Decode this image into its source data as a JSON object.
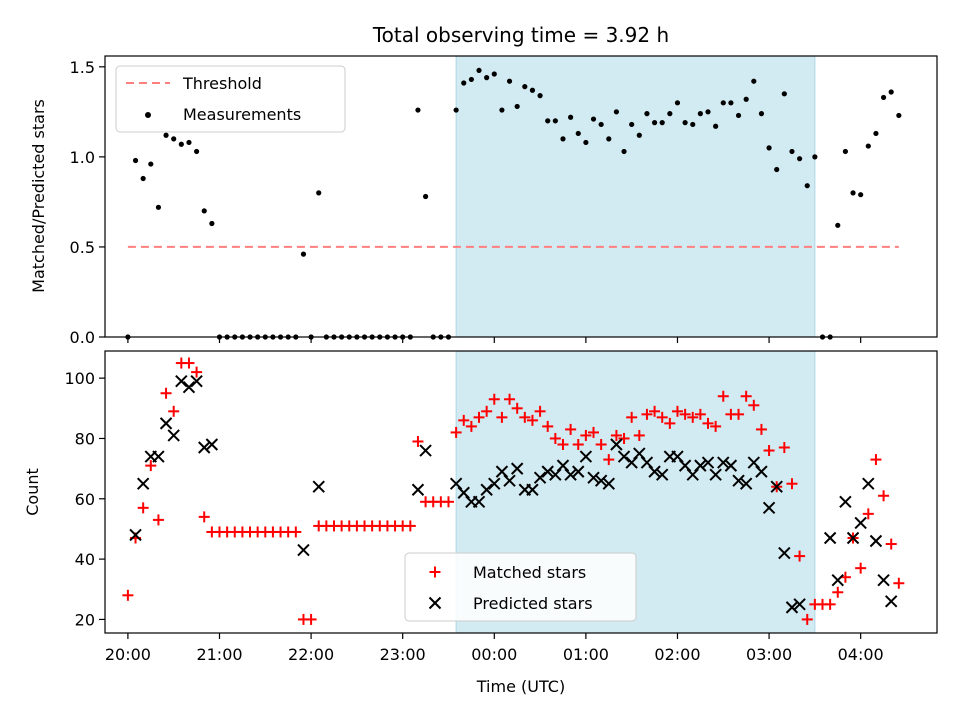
{
  "title": "Total observing time = 3.92 h",
  "colors": {
    "threshold": "#ff7f7f",
    "measurement": "#000000",
    "matched": "#ff0000",
    "predicted": "#000000",
    "window": "#add8e6"
  },
  "chart_data": [
    {
      "type": "scatter",
      "ylabel": "Matched/Predicted stars",
      "ylim": [
        0,
        1.56
      ],
      "yticks": [
        0.0,
        0.5,
        1.0,
        1.5
      ],
      "ytick_labels": [
        "0.0",
        "0.5",
        "1.0",
        "1.5"
      ],
      "legend": {
        "placement": "upper-left",
        "entries": [
          "Threshold",
          "Measurements"
        ]
      },
      "observing_window": [
        "23:35",
        "03:30"
      ],
      "threshold": {
        "value": 0.5,
        "from": "20:00",
        "to": "04:25"
      },
      "measurements": [
        [
          "20:00",
          0.0
        ],
        [
          "20:05",
          0.98
        ],
        [
          "20:10",
          0.88
        ],
        [
          "20:15",
          0.96
        ],
        [
          "20:20",
          0.72
        ],
        [
          "20:25",
          1.12
        ],
        [
          "20:30",
          1.1
        ],
        [
          "20:35",
          1.07
        ],
        [
          "20:40",
          1.08
        ],
        [
          "20:45",
          1.03
        ],
        [
          "20:50",
          0.7
        ],
        [
          "20:55",
          0.63
        ],
        [
          "21:00",
          0.0
        ],
        [
          "21:05",
          0.0
        ],
        [
          "21:10",
          0.0
        ],
        [
          "21:15",
          0.0
        ],
        [
          "21:20",
          0.0
        ],
        [
          "21:25",
          0.0
        ],
        [
          "21:30",
          0.0
        ],
        [
          "21:35",
          0.0
        ],
        [
          "21:40",
          0.0
        ],
        [
          "21:45",
          0.0
        ],
        [
          "21:50",
          0.0
        ],
        [
          "21:55",
          0.46
        ],
        [
          "22:00",
          0.0
        ],
        [
          "22:05",
          0.8
        ],
        [
          "22:10",
          0.0
        ],
        [
          "22:15",
          0.0
        ],
        [
          "22:20",
          0.0
        ],
        [
          "22:25",
          0.0
        ],
        [
          "22:30",
          0.0
        ],
        [
          "22:35",
          0.0
        ],
        [
          "22:40",
          0.0
        ],
        [
          "22:45",
          0.0
        ],
        [
          "22:50",
          0.0
        ],
        [
          "22:55",
          0.0
        ],
        [
          "23:00",
          0.0
        ],
        [
          "23:05",
          0.0
        ],
        [
          "23:10",
          1.26
        ],
        [
          "23:15",
          0.78
        ],
        [
          "23:20",
          0.0
        ],
        [
          "23:25",
          0.0
        ],
        [
          "23:30",
          0.0
        ],
        [
          "23:35",
          1.26
        ],
        [
          "23:40",
          1.41
        ],
        [
          "23:45",
          1.43
        ],
        [
          "23:50",
          1.48
        ],
        [
          "23:55",
          1.44
        ],
        [
          "00:00",
          1.46
        ],
        [
          "00:05",
          1.26
        ],
        [
          "00:10",
          1.42
        ],
        [
          "00:15",
          1.28
        ],
        [
          "00:20",
          1.39
        ],
        [
          "00:25",
          1.37
        ],
        [
          "00:30",
          1.34
        ],
        [
          "00:35",
          1.2
        ],
        [
          "00:40",
          1.2
        ],
        [
          "00:45",
          1.1
        ],
        [
          "00:50",
          1.22
        ],
        [
          "00:55",
          1.13
        ],
        [
          "01:00",
          1.08
        ],
        [
          "01:05",
          1.21
        ],
        [
          "01:10",
          1.18
        ],
        [
          "01:15",
          1.1
        ],
        [
          "01:20",
          1.25
        ],
        [
          "01:25",
          1.03
        ],
        [
          "01:30",
          1.18
        ],
        [
          "01:35",
          1.12
        ],
        [
          "01:40",
          1.24
        ],
        [
          "01:45",
          1.19
        ],
        [
          "01:50",
          1.19
        ],
        [
          "01:55",
          1.24
        ],
        [
          "02:00",
          1.3
        ],
        [
          "02:05",
          1.19
        ],
        [
          "02:10",
          1.18
        ],
        [
          "02:15",
          1.24
        ],
        [
          "02:20",
          1.25
        ],
        [
          "02:25",
          1.17
        ],
        [
          "02:30",
          1.3
        ],
        [
          "02:35",
          1.3
        ],
        [
          "02:40",
          1.23
        ],
        [
          "02:45",
          1.32
        ],
        [
          "02:50",
          1.42
        ],
        [
          "02:55",
          1.24
        ],
        [
          "03:00",
          1.05
        ],
        [
          "03:05",
          0.93
        ],
        [
          "03:10",
          1.35
        ],
        [
          "03:15",
          1.03
        ],
        [
          "03:20",
          0.99
        ],
        [
          "03:25",
          0.84
        ],
        [
          "03:30",
          1.0
        ],
        [
          "03:35",
          0.0
        ],
        [
          "03:40",
          0.0
        ],
        [
          "03:45",
          0.62
        ],
        [
          "03:50",
          1.03
        ],
        [
          "03:55",
          0.8
        ],
        [
          "04:00",
          0.79
        ],
        [
          "04:05",
          1.06
        ],
        [
          "04:10",
          1.13
        ],
        [
          "04:15",
          1.33
        ],
        [
          "04:20",
          1.36
        ],
        [
          "04:25",
          1.23
        ]
      ]
    },
    {
      "type": "scatter",
      "xlabel": "Time (UTC)",
      "ylabel": "Count",
      "ylim": [
        15.5,
        109
      ],
      "yticks": [
        20,
        40,
        60,
        80,
        100
      ],
      "ytick_labels": [
        "20",
        "40",
        "60",
        "80",
        "100"
      ],
      "xlim": [
        "19:45",
        "04:50"
      ],
      "xticks": [
        "20:00",
        "21:00",
        "22:00",
        "23:00",
        "00:00",
        "01:00",
        "02:00",
        "03:00",
        "04:00"
      ],
      "legend": {
        "placement": "lower-center",
        "entries": [
          "Matched stars",
          "Predicted stars"
        ]
      },
      "observing_window": [
        "23:35",
        "03:30"
      ],
      "series": [
        {
          "name": "Matched stars",
          "points": [
            [
              "20:00",
              28
            ],
            [
              "20:05",
              47
            ],
            [
              "20:10",
              57
            ],
            [
              "20:15",
              71
            ],
            [
              "20:20",
              53
            ],
            [
              "20:25",
              95
            ],
            [
              "20:30",
              89
            ],
            [
              "20:35",
              105
            ],
            [
              "20:40",
              105
            ],
            [
              "20:45",
              102
            ],
            [
              "20:50",
              54
            ],
            [
              "20:55",
              49
            ],
            [
              "21:00",
              49
            ],
            [
              "21:05",
              49
            ],
            [
              "21:10",
              49
            ],
            [
              "21:15",
              49
            ],
            [
              "21:20",
              49
            ],
            [
              "21:25",
              49
            ],
            [
              "21:30",
              49
            ],
            [
              "21:35",
              49
            ],
            [
              "21:40",
              49
            ],
            [
              "21:45",
              49
            ],
            [
              "21:50",
              49
            ],
            [
              "21:55",
              20
            ],
            [
              "22:00",
              20
            ],
            [
              "22:05",
              51
            ],
            [
              "22:10",
              51
            ],
            [
              "22:15",
              51
            ],
            [
              "22:20",
              51
            ],
            [
              "22:25",
              51
            ],
            [
              "22:30",
              51
            ],
            [
              "22:35",
              51
            ],
            [
              "22:40",
              51
            ],
            [
              "22:45",
              51
            ],
            [
              "22:50",
              51
            ],
            [
              "22:55",
              51
            ],
            [
              "23:00",
              51
            ],
            [
              "23:05",
              51
            ],
            [
              "23:10",
              79
            ],
            [
              "23:15",
              59
            ],
            [
              "23:20",
              59
            ],
            [
              "23:25",
              59
            ],
            [
              "23:30",
              59
            ],
            [
              "23:35",
              82
            ],
            [
              "23:40",
              86
            ],
            [
              "23:45",
              84
            ],
            [
              "23:50",
              87
            ],
            [
              "23:55",
              89
            ],
            [
              "00:00",
              93
            ],
            [
              "00:05",
              87
            ],
            [
              "00:10",
              93
            ],
            [
              "00:15",
              90
            ],
            [
              "00:20",
              87
            ],
            [
              "00:25",
              86
            ],
            [
              "00:30",
              89
            ],
            [
              "00:35",
              84
            ],
            [
              "00:40",
              80
            ],
            [
              "00:45",
              78
            ],
            [
              "00:50",
              83
            ],
            [
              "00:55",
              78
            ],
            [
              "01:00",
              81
            ],
            [
              "01:05",
              82
            ],
            [
              "01:10",
              78
            ],
            [
              "01:15",
              73
            ],
            [
              "01:20",
              81
            ],
            [
              "01:25",
              80
            ],
            [
              "01:30",
              87
            ],
            [
              "01:35",
              81
            ],
            [
              "01:40",
              88
            ],
            [
              "01:45",
              89
            ],
            [
              "01:50",
              87
            ],
            [
              "01:55",
              85
            ],
            [
              "02:00",
              89
            ],
            [
              "02:05",
              88
            ],
            [
              "02:10",
              87
            ],
            [
              "02:15",
              88
            ],
            [
              "02:20",
              85
            ],
            [
              "02:25",
              84
            ],
            [
              "02:30",
              94
            ],
            [
              "02:35",
              88
            ],
            [
              "02:40",
              88
            ],
            [
              "02:45",
              94
            ],
            [
              "02:50",
              91
            ],
            [
              "02:55",
              83
            ],
            [
              "03:00",
              76
            ],
            [
              "03:05",
              64
            ],
            [
              "03:10",
              77
            ],
            [
              "03:15",
              65
            ],
            [
              "03:20",
              41
            ],
            [
              "03:25",
              20
            ],
            [
              "03:30",
              25
            ],
            [
              "03:35",
              25
            ],
            [
              "03:40",
              25
            ],
            [
              "03:45",
              29
            ],
            [
              "03:50",
              34
            ],
            [
              "03:55",
              47
            ],
            [
              "04:00",
              37
            ],
            [
              "04:05",
              55
            ],
            [
              "04:10",
              73
            ],
            [
              "04:15",
              61
            ],
            [
              "04:20",
              45
            ],
            [
              "04:25",
              32
            ]
          ]
        },
        {
          "name": "Predicted stars",
          "points": [
            [
              "20:05",
              48
            ],
            [
              "20:10",
              65
            ],
            [
              "20:15",
              74
            ],
            [
              "20:20",
              74
            ],
            [
              "20:25",
              85
            ],
            [
              "20:30",
              81
            ],
            [
              "20:35",
              99
            ],
            [
              "20:40",
              97
            ],
            [
              "20:45",
              99
            ],
            [
              "20:50",
              77
            ],
            [
              "20:55",
              78
            ],
            [
              "21:55",
              43
            ],
            [
              "22:05",
              64
            ],
            [
              "23:10",
              63
            ],
            [
              "23:15",
              76
            ],
            [
              "23:35",
              65
            ],
            [
              "23:40",
              62
            ],
            [
              "23:45",
              59
            ],
            [
              "23:50",
              59
            ],
            [
              "23:55",
              63
            ],
            [
              "00:00",
              65
            ],
            [
              "00:05",
              69
            ],
            [
              "00:10",
              66
            ],
            [
              "00:15",
              70
            ],
            [
              "00:20",
              63
            ],
            [
              "00:25",
              63
            ],
            [
              "00:30",
              67
            ],
            [
              "00:35",
              69
            ],
            [
              "00:40",
              68
            ],
            [
              "00:45",
              71
            ],
            [
              "00:50",
              68
            ],
            [
              "00:55",
              69
            ],
            [
              "01:00",
              74
            ],
            [
              "01:05",
              67
            ],
            [
              "01:10",
              66
            ],
            [
              "01:15",
              65
            ],
            [
              "01:20",
              78
            ],
            [
              "01:25",
              74
            ],
            [
              "01:30",
              72
            ],
            [
              "01:35",
              75
            ],
            [
              "01:40",
              72
            ],
            [
              "01:45",
              69
            ],
            [
              "01:50",
              68
            ],
            [
              "01:55",
              74
            ],
            [
              "02:00",
              74
            ],
            [
              "02:05",
              71
            ],
            [
              "02:10",
              68
            ],
            [
              "02:15",
              71
            ],
            [
              "02:20",
              72
            ],
            [
              "02:25",
              68
            ],
            [
              "02:30",
              72
            ],
            [
              "02:35",
              71
            ],
            [
              "02:40",
              66
            ],
            [
              "02:45",
              65
            ],
            [
              "02:50",
              72
            ],
            [
              "02:55",
              69
            ],
            [
              "03:00",
              57
            ],
            [
              "03:05",
              64
            ],
            [
              "03:10",
              42
            ],
            [
              "03:15",
              24
            ],
            [
              "03:20",
              25
            ],
            [
              "03:40",
              47
            ],
            [
              "03:45",
              33
            ],
            [
              "03:50",
              59
            ],
            [
              "03:55",
              47
            ],
            [
              "04:00",
              52
            ],
            [
              "04:05",
              65
            ],
            [
              "04:10",
              46
            ],
            [
              "04:15",
              33
            ],
            [
              "04:20",
              26
            ]
          ]
        }
      ]
    }
  ]
}
